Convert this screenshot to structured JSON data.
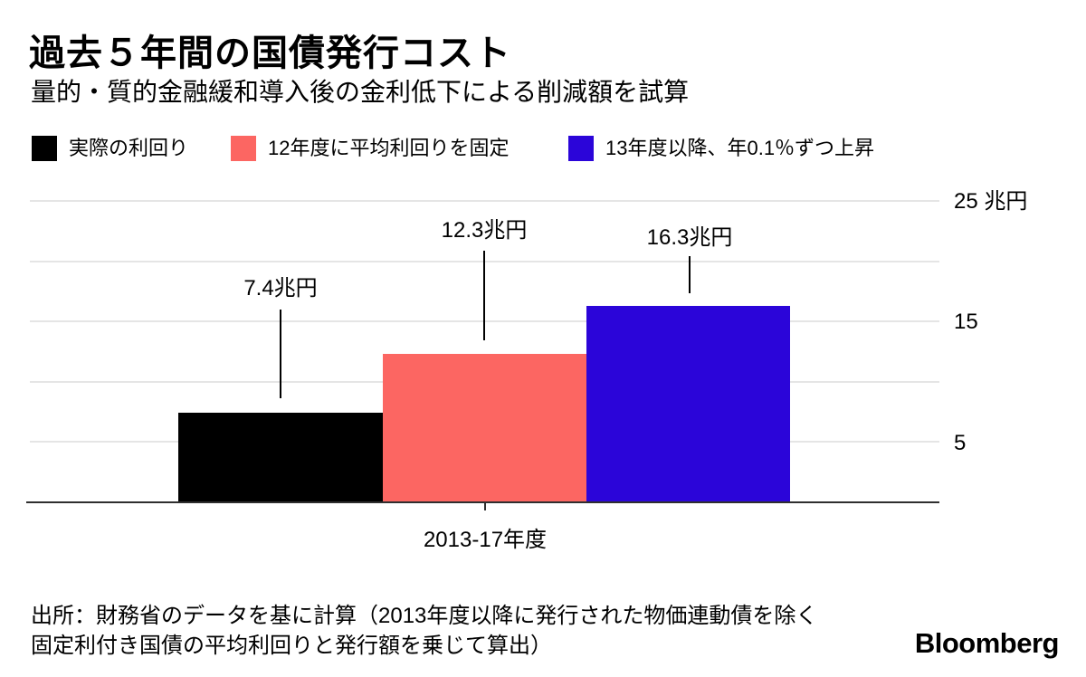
{
  "header": {
    "title": "過去５年間の国債発行コスト",
    "subtitle": "量的・質的金融緩和導入後の金利低下による削減額を試算"
  },
  "legend": [
    {
      "label": "実際の利回り",
      "color": "#000000"
    },
    {
      "label": "12年度に平均利回りを固定",
      "color": "#fc6662"
    },
    {
      "label": "13年度以降、年0.1％ずつ上昇",
      "color": "#2b05d9"
    }
  ],
  "chart_data": {
    "type": "bar",
    "title": "過去５年間の国債発行コスト",
    "subtitle": "量的・質的金融緩和導入後の金利低下による削減額を試算",
    "categories": [
      "2013-17年度"
    ],
    "series": [
      {
        "name": "実際の利回り",
        "values": [
          7.4
        ],
        "color": "#000000",
        "data_label": "7.4兆円"
      },
      {
        "name": "12年度に平均利回りを固定",
        "values": [
          12.3
        ],
        "color": "#fc6662",
        "data_label": "12.3兆円"
      },
      {
        "name": "13年度以降、年0.1％ずつ上昇",
        "values": [
          16.3
        ],
        "color": "#2b05d9",
        "data_label": "16.3兆円"
      }
    ],
    "xlabel": "2013-17年度",
    "ylabel": "兆円",
    "ylim": [
      0,
      25
    ],
    "gridlines": [
      25,
      20,
      15,
      10,
      5
    ],
    "grid": "on",
    "legend_position": "top",
    "yticks": [
      {
        "value": 25,
        "label": "25 兆円"
      },
      {
        "value": 15,
        "label": "15"
      },
      {
        "value": 5,
        "label": "5"
      }
    ]
  },
  "footer": {
    "source_line1": "出所：財務省のデータを基に計算（2013年度以降に発行された物価連動債を除く",
    "source_line2": "固定利付き国債の平均利回りと発行額を乗じて算出）",
    "brand": "Bloomberg"
  },
  "colors": {
    "background": "#ffffff",
    "gridline": "#e5e5e5",
    "axis": "#2f2f2f",
    "text": "#000000"
  }
}
